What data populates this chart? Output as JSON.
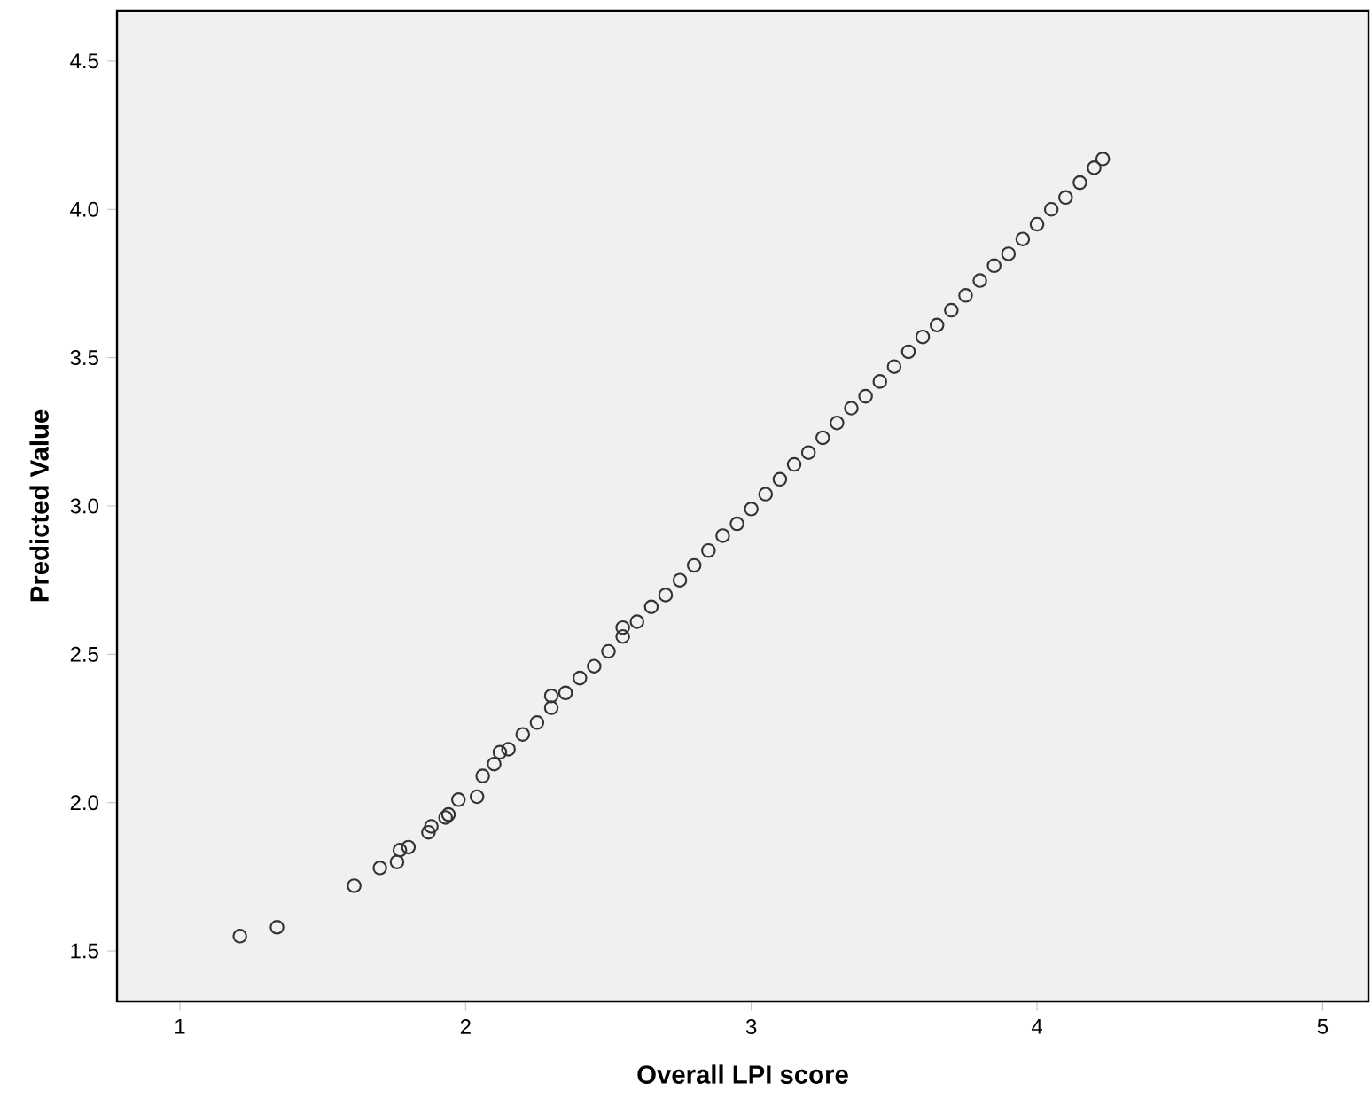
{
  "chart_data": {
    "type": "scatter",
    "xlabel": "Overall LPI score",
    "ylabel": "Predicted Value",
    "xlim": [
      0.78,
      5.16
    ],
    "ylim": [
      1.33,
      4.67
    ],
    "xticks": [
      1,
      2,
      3,
      4,
      5
    ],
    "yticks": [
      {
        "value": 1.5,
        "label": "1.5"
      },
      {
        "value": 2.0,
        "label": "2.0"
      },
      {
        "value": 2.5,
        "label": "2.5"
      },
      {
        "value": 3.0,
        "label": "3.0"
      },
      {
        "value": 3.5,
        "label": "3.5"
      },
      {
        "value": 4.0,
        "label": "4.0"
      },
      {
        "value": 4.5,
        "label": "4.5"
      }
    ],
    "grid": false,
    "marker": "circle",
    "series": [
      {
        "color": "#333333",
        "x": [
          1.21,
          1.34,
          1.61,
          1.7,
          1.76,
          1.77,
          1.8,
          1.87,
          1.88,
          1.93,
          1.94,
          1.975,
          2.04,
          2.06,
          2.1,
          2.12,
          2.15,
          2.2,
          2.25,
          2.3,
          2.3,
          2.35,
          2.4,
          2.45,
          2.5,
          2.55,
          2.55,
          2.6,
          2.65,
          2.7,
          2.75,
          2.8,
          2.85,
          2.9,
          2.95,
          3.0,
          3.05,
          3.1,
          3.15,
          3.2,
          3.25,
          3.3,
          3.35,
          3.4,
          3.45,
          3.5,
          3.55,
          3.6,
          3.65,
          3.7,
          3.75,
          3.8,
          3.85,
          3.9,
          3.95,
          4.0,
          4.05,
          4.1,
          4.15,
          4.2,
          4.23
        ],
        "values": [
          1.55,
          1.58,
          1.72,
          1.78,
          1.8,
          1.84,
          1.85,
          1.9,
          1.92,
          1.95,
          1.96,
          2.01,
          2.02,
          2.09,
          2.13,
          2.17,
          2.18,
          2.23,
          2.27,
          2.32,
          2.36,
          2.37,
          2.42,
          2.46,
          2.51,
          2.56,
          2.59,
          2.61,
          2.66,
          2.7,
          2.75,
          2.8,
          2.85,
          2.9,
          2.94,
          2.99,
          3.04,
          3.09,
          3.14,
          3.18,
          3.23,
          3.28,
          3.33,
          3.37,
          3.42,
          3.47,
          3.52,
          3.57,
          3.61,
          3.66,
          3.71,
          3.76,
          3.81,
          3.85,
          3.9,
          3.95,
          4.0,
          4.04,
          4.09,
          4.14,
          4.17
        ]
      }
    ]
  }
}
